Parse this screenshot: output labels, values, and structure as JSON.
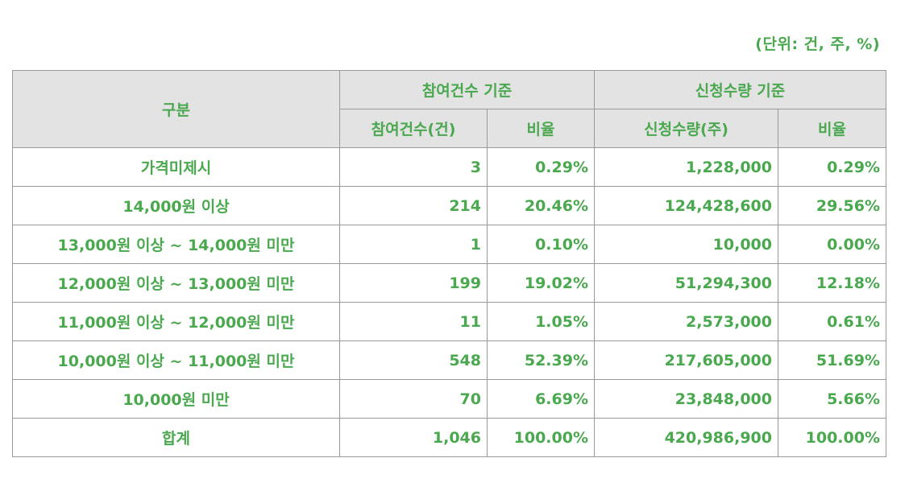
{
  "unit_note": "(단위: 건, 주, %)",
  "header": {
    "category": "구분",
    "group_count": "참여건수 기준",
    "group_shares": "신청수량 기준",
    "count": "참여건수(건)",
    "count_ratio": "비율",
    "shares": "신청수량(주)",
    "shares_ratio": "비율"
  },
  "rows": [
    {
      "category": "가격미제시",
      "count": "3",
      "count_ratio": "0.29%",
      "shares": "1,228,000",
      "shares_ratio": "0.29%"
    },
    {
      "category": "14,000원 이상",
      "count": "214",
      "count_ratio": "20.46%",
      "shares": "124,428,600",
      "shares_ratio": "29.56%"
    },
    {
      "category": "13,000원 이상 ~ 14,000원 미만",
      "count": "1",
      "count_ratio": "0.10%",
      "shares": "10,000",
      "shares_ratio": "0.00%"
    },
    {
      "category": "12,000원 이상 ~ 13,000원 미만",
      "count": "199",
      "count_ratio": "19.02%",
      "shares": "51,294,300",
      "shares_ratio": "12.18%"
    },
    {
      "category": "11,000원 이상 ~ 12,000원 미만",
      "count": "11",
      "count_ratio": "1.05%",
      "shares": "2,573,000",
      "shares_ratio": "0.61%"
    },
    {
      "category": "10,000원 이상 ~ 11,000원 미만",
      "count": "548",
      "count_ratio": "52.39%",
      "shares": "217,605,000",
      "shares_ratio": "51.69%"
    },
    {
      "category": "10,000원 미만",
      "count": "70",
      "count_ratio": "6.69%",
      "shares": "23,848,000",
      "shares_ratio": "5.66%"
    },
    {
      "category": "합계",
      "count": "1,046",
      "count_ratio": "100.00%",
      "shares": "420,986,900",
      "shares_ratio": "100.00%"
    }
  ],
  "colors": {
    "text": "#4aa84f",
    "header_bg": "#e3e3e3",
    "border": "#999999"
  }
}
